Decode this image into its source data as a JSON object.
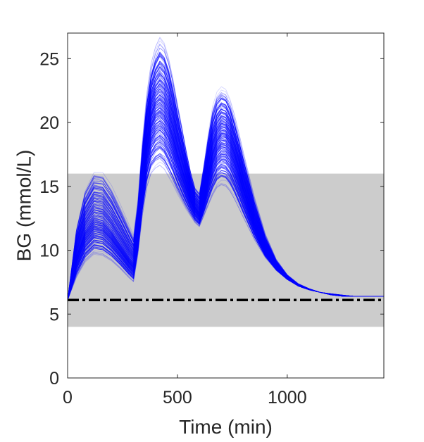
{
  "chart_data": {
    "type": "line",
    "title": "",
    "xlabel": "Time (min)",
    "ylabel": "BG (mmol/L)",
    "xlim": [
      0,
      1440
    ],
    "ylim": [
      0,
      27
    ],
    "xticks": [
      0,
      500,
      1000
    ],
    "yticks": [
      0,
      5,
      10,
      15,
      20,
      25
    ],
    "grid": false,
    "legend": "none",
    "target_band": {
      "y_low": 4,
      "y_high": 16,
      "color": "#cccccc"
    },
    "reference_line": {
      "y": 6.1,
      "style": "dash-dot",
      "color": "#000000"
    },
    "ensemble": {
      "color": "#0000ff",
      "count": 160,
      "t": [
        0,
        40,
        80,
        120,
        160,
        200,
        240,
        280,
        300,
        320,
        340,
        360,
        380,
        400,
        420,
        440,
        460,
        480,
        500,
        520,
        540,
        560,
        580,
        600,
        620,
        640,
        660,
        680,
        700,
        720,
        740,
        760,
        780,
        800,
        850,
        900,
        950,
        1000,
        1050,
        1100,
        1150,
        1200,
        1250,
        1300,
        1350,
        1400,
        1440
      ],
      "low": [
        6.1,
        7.8,
        9.0,
        9.6,
        9.5,
        9.1,
        8.5,
        7.8,
        7.5,
        9.6,
        12.6,
        14.8,
        15.9,
        16.3,
        16.5,
        16.2,
        15.6,
        15.0,
        14.3,
        13.7,
        13.1,
        12.6,
        12.1,
        11.8,
        12.6,
        13.4,
        14.2,
        14.8,
        15.0,
        14.9,
        14.5,
        13.9,
        13.2,
        12.5,
        10.8,
        9.4,
        8.4,
        7.7,
        7.2,
        6.9,
        6.7,
        6.6,
        6.5,
        6.4,
        6.4,
        6.4,
        6.4
      ],
      "mid": [
        6.1,
        9.5,
        11.4,
        12.3,
        12.1,
        11.3,
        10.3,
        9.3,
        8.9,
        11.5,
        15.3,
        18.3,
        20.2,
        21.1,
        21.4,
        21.0,
        20.2,
        19.0,
        17.7,
        16.5,
        15.4,
        14.3,
        13.4,
        12.9,
        14.3,
        16.0,
        17.5,
        18.5,
        19.0,
        18.9,
        18.3,
        17.3,
        16.2,
        15.0,
        12.3,
        10.1,
        8.7,
        7.8,
        7.2,
        6.9,
        6.7,
        6.5,
        6.4,
        6.4,
        6.4,
        6.4,
        6.4
      ],
      "high": [
        6.1,
        11.8,
        14.9,
        16.3,
        16.2,
        15.1,
        13.6,
        12.0,
        11.2,
        14.0,
        18.5,
        22.2,
        24.6,
        25.9,
        26.7,
        26.3,
        25.2,
        23.6,
        21.7,
        19.9,
        18.0,
        16.3,
        15.0,
        14.6,
        16.8,
        19.2,
        21.3,
        22.4,
        22.8,
        22.6,
        21.8,
        20.6,
        19.2,
        17.7,
        14.2,
        11.3,
        9.3,
        8.1,
        7.4,
        7.0,
        6.7,
        6.6,
        6.5,
        6.4,
        6.4,
        6.4,
        6.4
      ]
    }
  }
}
